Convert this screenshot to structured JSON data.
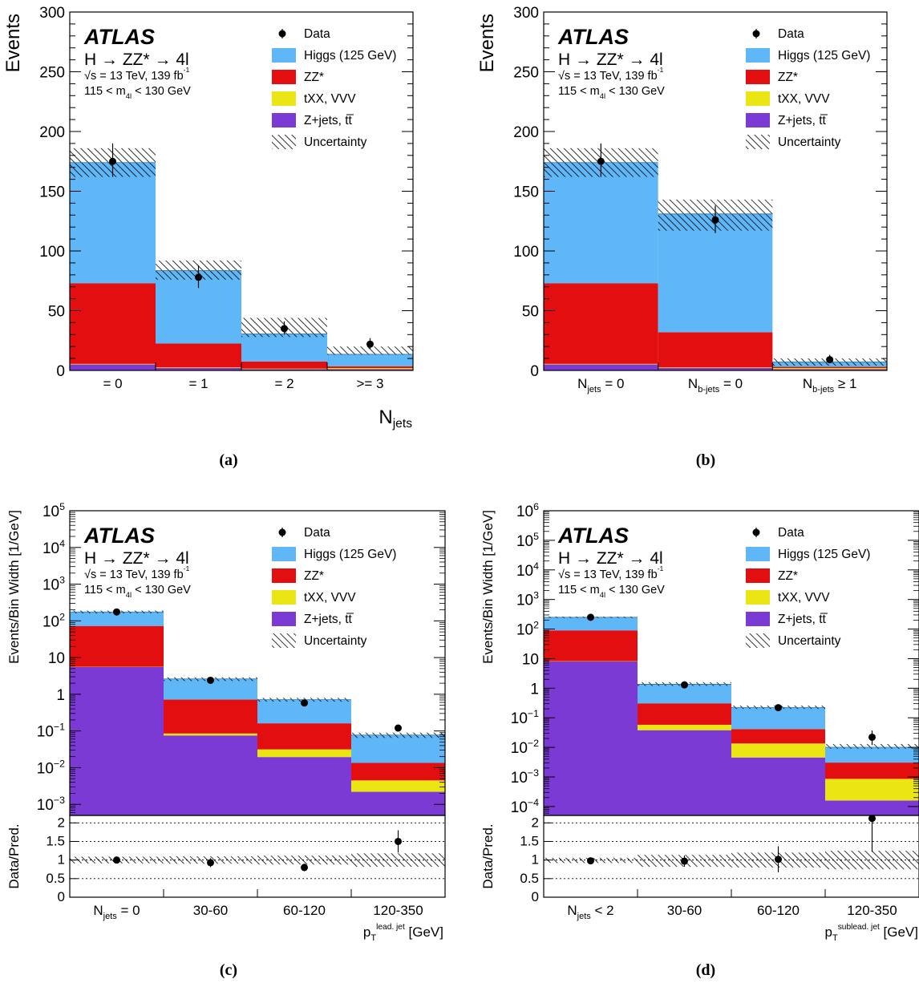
{
  "legend": {
    "data": "Data",
    "higgs": "Higgs (125 GeV)",
    "zz": "ZZ*",
    "txx": "tXX, VVV",
    "zjets": "Z+jets, tt̅",
    "unc": "Uncertainty"
  },
  "experiment": {
    "name": "ATLAS",
    "process": "H → ZZ* → 4l",
    "energy": "√s = 13 TeV, 139 fb⁻¹",
    "mass_window": "115 < m4l < 130 GeV"
  },
  "colors": {
    "higgs": "#5fb7f7",
    "zz": "#e30e0f",
    "txx": "#ece514",
    "zjets": "#7c3ad5"
  },
  "chart_data": [
    {
      "id": "a",
      "type": "bar",
      "stacked": true,
      "caption": "(a)",
      "ylabel": "Events",
      "xlabel": "Njets",
      "ylim": [
        0,
        300
      ],
      "yscale": "linear",
      "yticks": [
        "0",
        "50",
        "100",
        "150",
        "200",
        "250",
        "300"
      ],
      "categories": [
        "= 0",
        "= 1",
        "= 2",
        ">= 3"
      ],
      "series": [
        {
          "name": "Z+jets, tt̅",
          "values": [
            5,
            2,
            1,
            1
          ]
        },
        {
          "name": "tXX, VVV",
          "values": [
            0.5,
            0.5,
            0.5,
            1
          ]
        },
        {
          "name": "ZZ*",
          "values": [
            67.5,
            20,
            6,
            1.5
          ]
        },
        {
          "name": "Higgs (125 GeV)",
          "values": [
            101,
            61,
            23,
            10
          ]
        }
      ],
      "uncertainty_band": {
        "low": [
          162,
          76,
          28,
          13
        ],
        "high": [
          186,
          92,
          44,
          20
        ]
      },
      "data": {
        "values": [
          175,
          78,
          35,
          22
        ],
        "err_low": [
          13,
          9,
          5,
          4
        ],
        "err_high": [
          15,
          10,
          6,
          5
        ]
      }
    },
    {
      "id": "b",
      "type": "bar",
      "stacked": true,
      "caption": "(b)",
      "ylabel": "Events",
      "xlabel": "",
      "ylim": [
        0,
        300
      ],
      "yscale": "linear",
      "yticks": [
        "0",
        "50",
        "100",
        "150",
        "200",
        "250",
        "300"
      ],
      "categories": [
        "Njets = 0",
        "Nb-jets = 0",
        "Nb-jets ≥ 1"
      ],
      "series": [
        {
          "name": "Z+jets, tt̅",
          "values": [
            5,
            2,
            1
          ]
        },
        {
          "name": "tXX, VVV",
          "values": [
            0.5,
            0.5,
            1
          ]
        },
        {
          "name": "ZZ*",
          "values": [
            67.5,
            29.5,
            1
          ]
        },
        {
          "name": "Higgs (125 GeV)",
          "values": [
            101,
            99,
            4
          ]
        }
      ],
      "uncertainty_band": {
        "low": [
          162,
          117,
          4
        ],
        "high": [
          186,
          143,
          10
        ]
      },
      "data": {
        "values": [
          175,
          126,
          9
        ],
        "err_low": [
          13,
          11,
          3
        ],
        "err_high": [
          15,
          12,
          4
        ]
      }
    },
    {
      "id": "c",
      "type": "bar",
      "stacked": true,
      "caption": "(c)",
      "ylabel": "Events/Bin Width [1/GeV]",
      "xlabel": "pT lead. jet [GeV]",
      "yscale": "log",
      "ylim": [
        0.0005,
        100000
      ],
      "yticks": [
        "10⁻³",
        "10⁻²",
        "10⁻¹",
        "1",
        "10",
        "10²",
        "10³",
        "10⁴",
        "10⁵"
      ],
      "categories": [
        "Njets = 0",
        "30-60",
        "60-120",
        "120-350"
      ],
      "series": [
        {
          "name": "Z+jets, tt̅",
          "values": [
            5.5,
            0.075,
            0.019,
            0.0017
          ]
        },
        {
          "name": "tXX, VVV",
          "values": [
            0.1,
            0.01,
            0.012,
            0.0023
          ]
        },
        {
          "name": "ZZ*",
          "values": [
            67,
            0.63,
            0.13,
            0.009
          ]
        },
        {
          "name": "Higgs (125 GeV)",
          "values": [
            102,
            1.9,
            0.55,
            0.064
          ]
        }
      ],
      "uncertainty_band": {
        "low": [
          160,
          2.3,
          0.63,
          0.065
        ],
        "high": [
          190,
          2.9,
          0.8,
          0.09
        ]
      },
      "data": {
        "values": [
          175,
          2.4,
          0.58,
          0.12
        ],
        "err_low": [
          13,
          0.3,
          0.08,
          0.02
        ],
        "err_high": [
          15,
          0.35,
          0.09,
          0.025
        ]
      },
      "ratio": {
        "ylabel": "Data/Pred.",
        "ylim": [
          0,
          2.2
        ],
        "yticks": [
          "0",
          "0.5",
          "1",
          "1.5",
          "2"
        ],
        "values": [
          1.0,
          0.93,
          0.8,
          1.5
        ],
        "err": [
          0.08,
          0.12,
          0.1,
          0.3
        ],
        "band_low": [
          0.91,
          0.9,
          0.88,
          0.82
        ],
        "band_high": [
          1.09,
          1.1,
          1.12,
          1.18
        ]
      }
    },
    {
      "id": "d",
      "type": "bar",
      "stacked": true,
      "caption": "(d)",
      "ylabel": "Events/Bin Width [1/GeV]",
      "xlabel": "pT sublead. jet [GeV]",
      "yscale": "log",
      "ylim": [
        5e-05,
        1000000
      ],
      "yticks": [
        "10⁻⁴",
        "10⁻³",
        "10⁻²",
        "10⁻¹",
        "1",
        "10",
        "10²",
        "10³",
        "10⁴",
        "10⁵",
        "10⁶"
      ],
      "categories": [
        "Njets < 2",
        "30-60",
        "60-120",
        "120-350"
      ],
      "series": [
        {
          "name": "Z+jets, tt̅",
          "values": [
            8,
            0.038,
            0.0045,
            0.00011
          ]
        },
        {
          "name": "tXX, VVV",
          "values": [
            0.2,
            0.02,
            0.009,
            0.0007
          ]
        },
        {
          "name": "ZZ*",
          "values": [
            82,
            0.25,
            0.028,
            0.0022
          ]
        },
        {
          "name": "Higgs (125 GeV)",
          "values": [
            160,
            1.05,
            0.18,
            0.007
          ]
        }
      ],
      "uncertainty_band": {
        "low": [
          235,
          1.2,
          0.2,
          0.009
        ],
        "high": [
          265,
          1.6,
          0.26,
          0.013
        ]
      },
      "data": {
        "values": [
          250,
          1.3,
          0.22,
          0.022
        ],
        "err_low": [
          16,
          0.25,
          0.05,
          0.01
        ],
        "err_high": [
          17,
          0.3,
          0.06,
          0.015
        ]
      },
      "ratio": {
        "ylabel": "Data/Pred.",
        "ylim": [
          0,
          2.2
        ],
        "yticks": [
          "0",
          "0.5",
          "1",
          "1.5",
          "2"
        ],
        "values": [
          0.98,
          0.97,
          1.02,
          2.12
        ],
        "err": [
          0.06,
          0.15,
          0.35,
          0.9
        ],
        "band_low": [
          0.92,
          0.82,
          0.8,
          0.75
        ],
        "band_high": [
          1.06,
          1.14,
          1.2,
          1.25
        ]
      }
    }
  ]
}
